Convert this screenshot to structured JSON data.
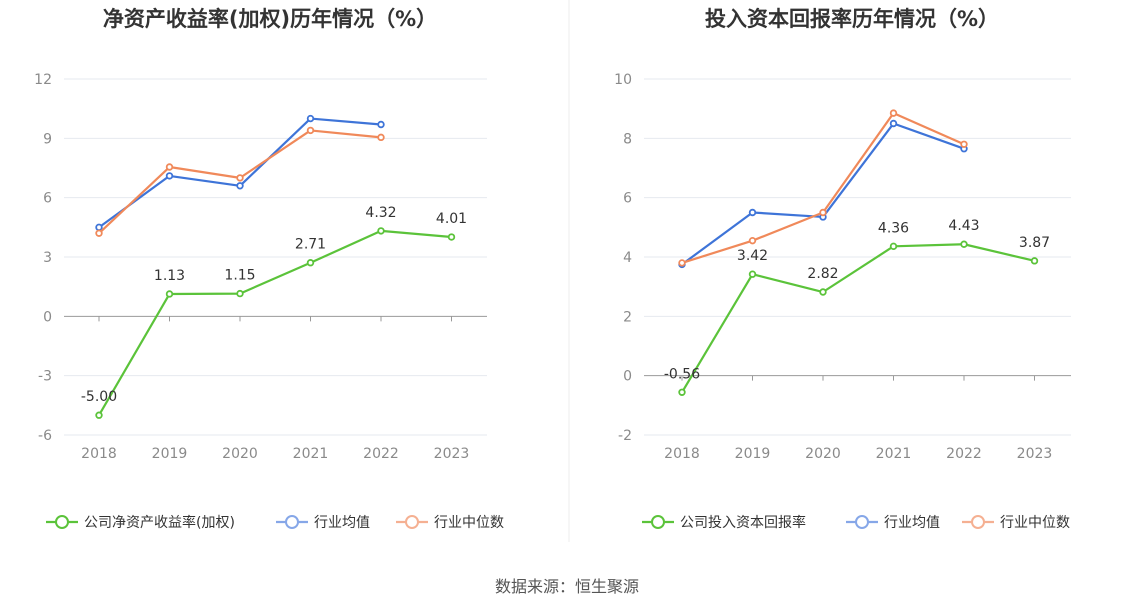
{
  "source": "数据来源：恒生聚源",
  "colors": {
    "company": "#5bc33a",
    "avg": "#3e74d8",
    "median": "#f0895a",
    "avg_legend": "#86a7e8",
    "median_legend": "#f5b092",
    "grid": "#e6e9ef",
    "axis": "#999999"
  },
  "chart_data": [
    {
      "type": "line",
      "title": "净资产收益率(加权)历年情况（%）",
      "categories": [
        "2018",
        "2019",
        "2020",
        "2021",
        "2022",
        "2023"
      ],
      "ylim": [
        -6,
        12
      ],
      "yticks": [
        -6,
        -3,
        0,
        3,
        6,
        9,
        12
      ],
      "ytick_labels": [
        "-6",
        "-3",
        "0",
        "3",
        "6",
        "9",
        "12"
      ],
      "grid": true,
      "legend_position": "bottom",
      "series": [
        {
          "name": "公司净资产收益率(加权)",
          "key": "company",
          "values": [
            -5.0,
            1.13,
            1.15,
            2.71,
            4.32,
            4.01
          ],
          "labels": [
            "-5.00",
            "1.13",
            "1.15",
            "2.71",
            "4.32",
            "4.01"
          ]
        },
        {
          "name": "行业均值",
          "key": "avg",
          "values": [
            4.5,
            7.1,
            6.6,
            10.0,
            9.7,
            null
          ]
        },
        {
          "name": "行业中位数",
          "key": "median",
          "values": [
            4.2,
            7.55,
            7.0,
            9.4,
            9.05,
            null
          ]
        }
      ]
    },
    {
      "type": "line",
      "title": "投入资本回报率历年情况（%）",
      "categories": [
        "2018",
        "2019",
        "2020",
        "2021",
        "2022",
        "2023"
      ],
      "ylim": [
        -2,
        10
      ],
      "yticks": [
        -2,
        0,
        2,
        4,
        6,
        8,
        10
      ],
      "ytick_labels": [
        "-2",
        "0",
        "2",
        "4",
        "6",
        "8",
        "10"
      ],
      "grid": true,
      "legend_position": "bottom",
      "series": [
        {
          "name": "公司投入资本回报率",
          "key": "company",
          "values": [
            -0.56,
            3.42,
            2.82,
            4.36,
            4.43,
            3.87
          ],
          "labels": [
            "-0.56",
            "3.42",
            "2.82",
            "4.36",
            "4.43",
            "3.87"
          ]
        },
        {
          "name": "行业均值",
          "key": "avg",
          "values": [
            3.75,
            5.5,
            5.35,
            8.5,
            7.65,
            null
          ]
        },
        {
          "name": "行业中位数",
          "key": "median",
          "values": [
            3.8,
            4.55,
            5.5,
            8.85,
            7.8,
            null
          ]
        }
      ]
    }
  ]
}
